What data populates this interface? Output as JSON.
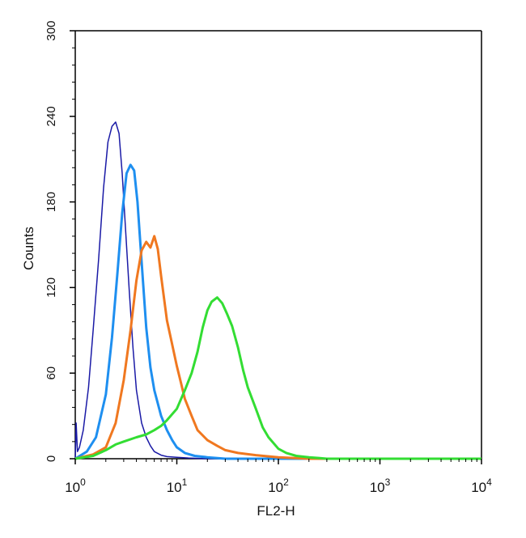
{
  "chart_data": {
    "type": "line",
    "xlabel": "FL2-H",
    "ylabel": "Counts",
    "xscale": "log",
    "xlim": [
      1,
      10000
    ],
    "ylim": [
      0,
      300
    ],
    "grid": false,
    "yticks": [
      {
        "value": 0,
        "label": "0"
      },
      {
        "value": 60,
        "label": "60"
      },
      {
        "value": 120,
        "label": "120"
      },
      {
        "value": 180,
        "label": "180"
      },
      {
        "value": 240,
        "label": "240"
      },
      {
        "value": 300,
        "label": "300"
      }
    ],
    "xticks": [
      {
        "value": 1,
        "base": "10",
        "exp": "0"
      },
      {
        "value": 10,
        "base": "10",
        "exp": "1"
      },
      {
        "value": 100,
        "base": "10",
        "exp": "2"
      },
      {
        "value": 1000,
        "base": "10",
        "exp": "3"
      },
      {
        "value": 10000,
        "base": "10",
        "exp": "4"
      }
    ],
    "series": [
      {
        "color": "#1a1aa6",
        "width": 1.5,
        "x": [
          1.0,
          1.02,
          1.05,
          1.1,
          1.2,
          1.35,
          1.5,
          1.7,
          1.9,
          2.1,
          2.3,
          2.5,
          2.7,
          2.9,
          3.1,
          3.4,
          3.7,
          4.0,
          4.5,
          5.0,
          5.5,
          6.0,
          7.0,
          8.0,
          10.0,
          13.0,
          20.0,
          10000.0
        ],
        "y": [
          0,
          25,
          5,
          8,
          20,
          50,
          90,
          140,
          190,
          222,
          233,
          236,
          228,
          200,
          165,
          118,
          78,
          48,
          25,
          15,
          9,
          5,
          2.5,
          1.5,
          1,
          0.5,
          0,
          0
        ]
      },
      {
        "color": "#1e8ff0",
        "width": 3,
        "x": [
          1.0,
          1.3,
          1.6,
          2.0,
          2.3,
          2.6,
          2.9,
          3.2,
          3.5,
          3.8,
          4.1,
          4.5,
          5.0,
          5.5,
          6.0,
          7.0,
          8.0,
          9.0,
          10.0,
          12.0,
          15.0,
          20.0,
          30.0,
          10000.0
        ],
        "y": [
          0,
          5,
          15,
          45,
          85,
          130,
          172,
          200,
          206,
          202,
          180,
          138,
          92,
          64,
          48,
          30,
          20,
          13,
          8,
          4,
          2,
          1,
          0,
          0
        ]
      },
      {
        "color": "#f07820",
        "width": 3,
        "x": [
          1.0,
          1.5,
          2.0,
          2.5,
          3.0,
          3.5,
          4.0,
          4.5,
          5.0,
          5.5,
          6.0,
          6.5,
          7.0,
          7.5,
          8.0,
          9.0,
          10.0,
          11.0,
          12.0,
          14.0,
          16.0,
          20.0,
          25.0,
          30.0,
          40.0,
          60.0,
          100.0,
          200.0,
          10000.0
        ],
        "y": [
          0,
          3,
          8,
          25,
          55,
          90,
          125,
          146,
          152,
          148,
          156,
          147,
          128,
          112,
          97,
          80,
          65,
          53,
          42,
          30,
          20,
          13,
          9,
          6,
          4,
          2.5,
          1,
          0,
          0
        ]
      },
      {
        "color": "#33dd33",
        "width": 3,
        "x": [
          1.0,
          1.5,
          2.0,
          2.5,
          3.0,
          4.0,
          5.0,
          6.0,
          7.0,
          8.0,
          10.0,
          12.0,
          14.0,
          16.0,
          18.0,
          20.0,
          22.0,
          25.0,
          28.0,
          31.0,
          35.0,
          40.0,
          45.0,
          50.0,
          60.0,
          70.0,
          80.0,
          100.0,
          120.0,
          150.0,
          200.0,
          250.0,
          300.0,
          10000.0
        ],
        "y": [
          0,
          2,
          6,
          10,
          12,
          15,
          17,
          20,
          23,
          27,
          35,
          48,
          60,
          75,
          92,
          104,
          110,
          113,
          109,
          102,
          93,
          78,
          62,
          50,
          35,
          22,
          15,
          7,
          4,
          2,
          1,
          0.5,
          0,
          0
        ]
      }
    ]
  }
}
